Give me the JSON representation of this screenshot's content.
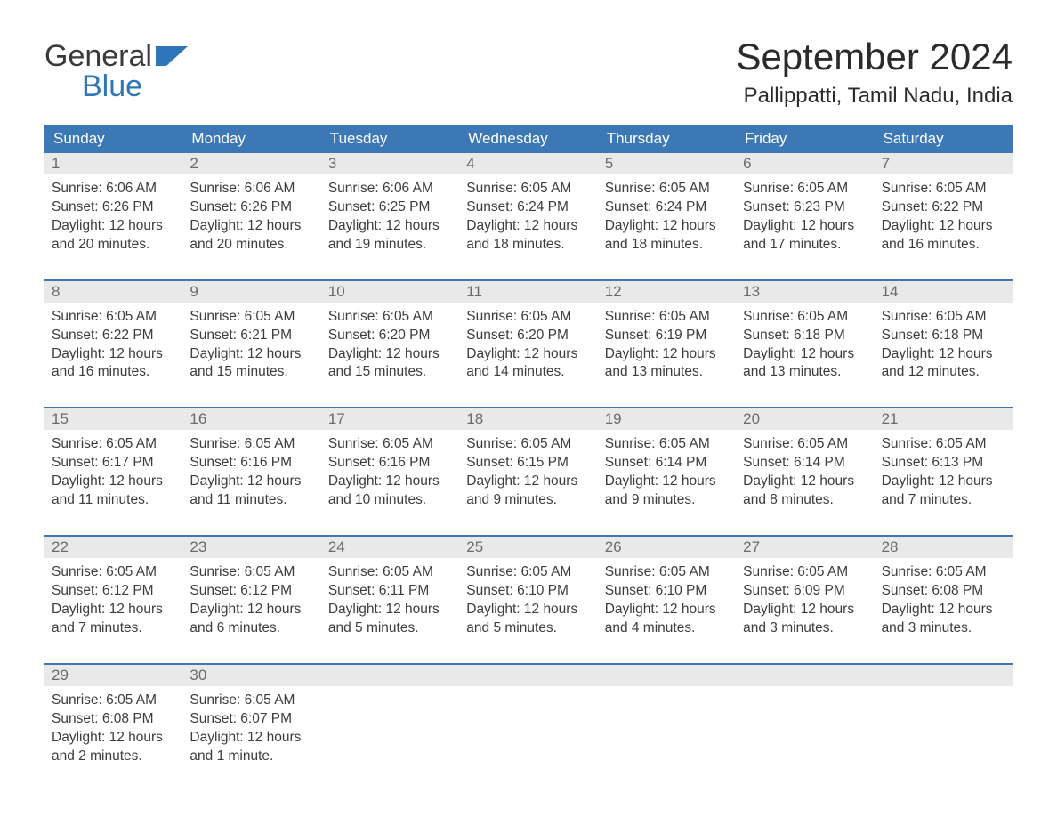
{
  "brand": {
    "line1": "General",
    "line2": "Blue",
    "flag_color": "#2f76b8",
    "text_color": "#3a3a3a"
  },
  "title": "September 2024",
  "location": "Pallippatti, Tamil Nadu, India",
  "colors": {
    "header_bg": "#3b78b5",
    "header_text": "#ffffff",
    "daynum_bg": "#e9e9e9",
    "daynum_text": "#6b6b6b",
    "body_text": "#3d3d3d",
    "week_border": "#3b78b5",
    "page_bg": "#ffffff"
  },
  "weekdays": [
    "Sunday",
    "Monday",
    "Tuesday",
    "Wednesday",
    "Thursday",
    "Friday",
    "Saturday"
  ],
  "weeks": [
    [
      {
        "n": "1",
        "sunrise": "6:06 AM",
        "sunset": "6:26 PM",
        "daylight": "12 hours and 20 minutes."
      },
      {
        "n": "2",
        "sunrise": "6:06 AM",
        "sunset": "6:26 PM",
        "daylight": "12 hours and 20 minutes."
      },
      {
        "n": "3",
        "sunrise": "6:06 AM",
        "sunset": "6:25 PM",
        "daylight": "12 hours and 19 minutes."
      },
      {
        "n": "4",
        "sunrise": "6:05 AM",
        "sunset": "6:24 PM",
        "daylight": "12 hours and 18 minutes."
      },
      {
        "n": "5",
        "sunrise": "6:05 AM",
        "sunset": "6:24 PM",
        "daylight": "12 hours and 18 minutes."
      },
      {
        "n": "6",
        "sunrise": "6:05 AM",
        "sunset": "6:23 PM",
        "daylight": "12 hours and 17 minutes."
      },
      {
        "n": "7",
        "sunrise": "6:05 AM",
        "sunset": "6:22 PM",
        "daylight": "12 hours and 16 minutes."
      }
    ],
    [
      {
        "n": "8",
        "sunrise": "6:05 AM",
        "sunset": "6:22 PM",
        "daylight": "12 hours and 16 minutes."
      },
      {
        "n": "9",
        "sunrise": "6:05 AM",
        "sunset": "6:21 PM",
        "daylight": "12 hours and 15 minutes."
      },
      {
        "n": "10",
        "sunrise": "6:05 AM",
        "sunset": "6:20 PM",
        "daylight": "12 hours and 15 minutes."
      },
      {
        "n": "11",
        "sunrise": "6:05 AM",
        "sunset": "6:20 PM",
        "daylight": "12 hours and 14 minutes."
      },
      {
        "n": "12",
        "sunrise": "6:05 AM",
        "sunset": "6:19 PM",
        "daylight": "12 hours and 13 minutes."
      },
      {
        "n": "13",
        "sunrise": "6:05 AM",
        "sunset": "6:18 PM",
        "daylight": "12 hours and 13 minutes."
      },
      {
        "n": "14",
        "sunrise": "6:05 AM",
        "sunset": "6:18 PM",
        "daylight": "12 hours and 12 minutes."
      }
    ],
    [
      {
        "n": "15",
        "sunrise": "6:05 AM",
        "sunset": "6:17 PM",
        "daylight": "12 hours and 11 minutes."
      },
      {
        "n": "16",
        "sunrise": "6:05 AM",
        "sunset": "6:16 PM",
        "daylight": "12 hours and 11 minutes."
      },
      {
        "n": "17",
        "sunrise": "6:05 AM",
        "sunset": "6:16 PM",
        "daylight": "12 hours and 10 minutes."
      },
      {
        "n": "18",
        "sunrise": "6:05 AM",
        "sunset": "6:15 PM",
        "daylight": "12 hours and 9 minutes."
      },
      {
        "n": "19",
        "sunrise": "6:05 AM",
        "sunset": "6:14 PM",
        "daylight": "12 hours and 9 minutes."
      },
      {
        "n": "20",
        "sunrise": "6:05 AM",
        "sunset": "6:14 PM",
        "daylight": "12 hours and 8 minutes."
      },
      {
        "n": "21",
        "sunrise": "6:05 AM",
        "sunset": "6:13 PM",
        "daylight": "12 hours and 7 minutes."
      }
    ],
    [
      {
        "n": "22",
        "sunrise": "6:05 AM",
        "sunset": "6:12 PM",
        "daylight": "12 hours and 7 minutes."
      },
      {
        "n": "23",
        "sunrise": "6:05 AM",
        "sunset": "6:12 PM",
        "daylight": "12 hours and 6 minutes."
      },
      {
        "n": "24",
        "sunrise": "6:05 AM",
        "sunset": "6:11 PM",
        "daylight": "12 hours and 5 minutes."
      },
      {
        "n": "25",
        "sunrise": "6:05 AM",
        "sunset": "6:10 PM",
        "daylight": "12 hours and 5 minutes."
      },
      {
        "n": "26",
        "sunrise": "6:05 AM",
        "sunset": "6:10 PM",
        "daylight": "12 hours and 4 minutes."
      },
      {
        "n": "27",
        "sunrise": "6:05 AM",
        "sunset": "6:09 PM",
        "daylight": "12 hours and 3 minutes."
      },
      {
        "n": "28",
        "sunrise": "6:05 AM",
        "sunset": "6:08 PM",
        "daylight": "12 hours and 3 minutes."
      }
    ],
    [
      {
        "n": "29",
        "sunrise": "6:05 AM",
        "sunset": "6:08 PM",
        "daylight": "12 hours and 2 minutes."
      },
      {
        "n": "30",
        "sunrise": "6:05 AM",
        "sunset": "6:07 PM",
        "daylight": "12 hours and 1 minute."
      },
      null,
      null,
      null,
      null,
      null
    ]
  ],
  "labels": {
    "sunrise": "Sunrise: ",
    "sunset": "Sunset: ",
    "daylight": "Daylight: "
  }
}
